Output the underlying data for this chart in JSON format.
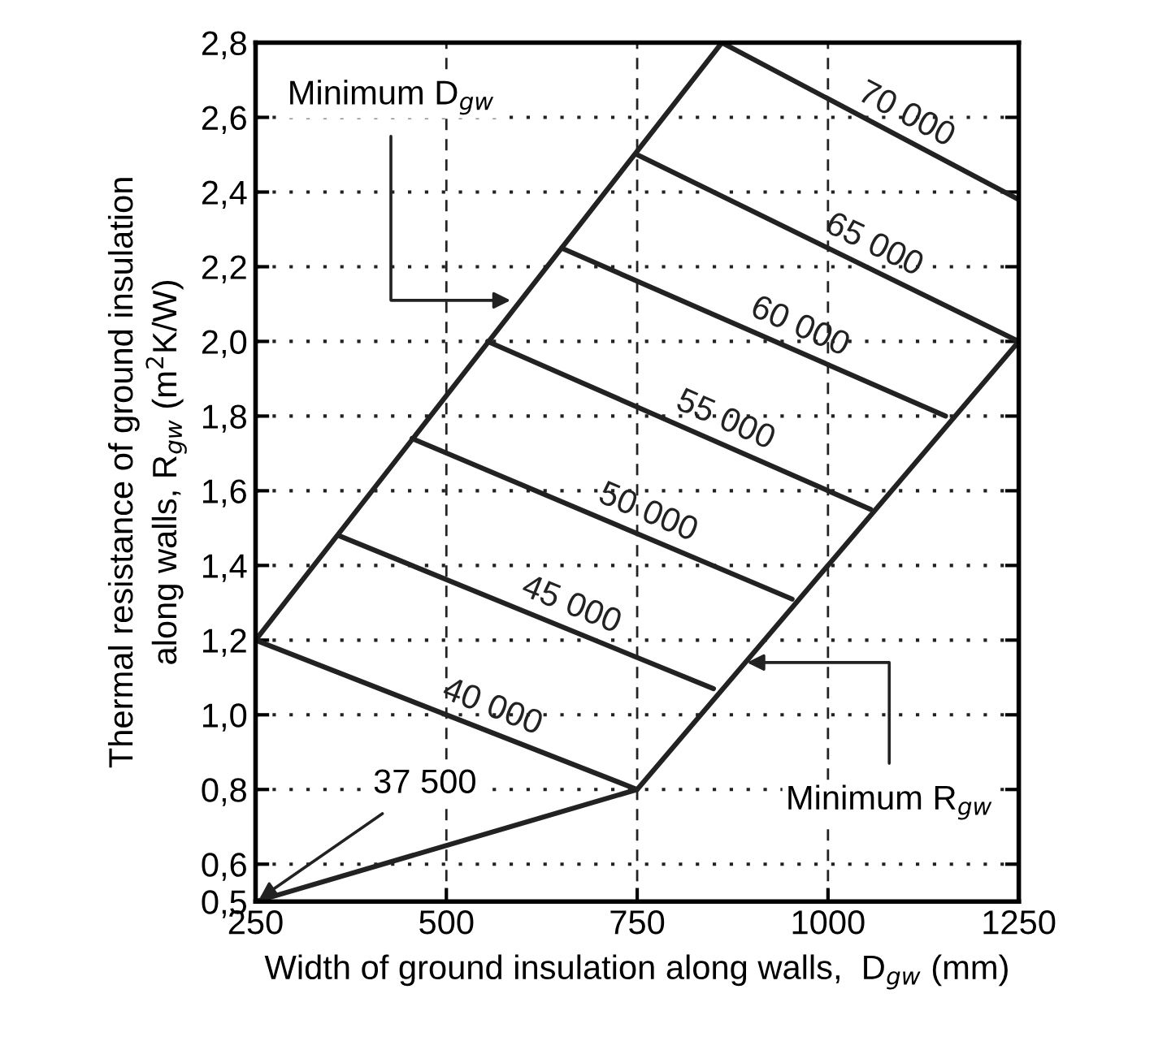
{
  "chart_data": {
    "type": "line",
    "xlabel": "Width of ground insulation along walls,  D$_{gw}$ (mm)",
    "ylabel": "Thermal resistance of ground insulation\nalong walls, R$_{gw}$ (m$^{2}$K/W)",
    "xlim": [
      250,
      1250
    ],
    "xticks": [
      250,
      500,
      750,
      1000,
      1250
    ],
    "ylim": [
      0.5,
      2.8
    ],
    "yticks": [
      {
        "value": 0.5,
        "label": "0,5"
      },
      {
        "value": 0.6,
        "label": "0,6"
      },
      {
        "value": 0.8,
        "label": "0,8"
      },
      {
        "value": 1.0,
        "label": "1,0"
      },
      {
        "value": 1.2,
        "label": "1,2"
      },
      {
        "value": 1.4,
        "label": "1,4"
      },
      {
        "value": 1.6,
        "label": "1,6"
      },
      {
        "value": 1.8,
        "label": "1,8"
      },
      {
        "value": 2.0,
        "label": "2,0"
      },
      {
        "value": 2.2,
        "label": "2,2"
      },
      {
        "value": 2.4,
        "label": "2,4"
      },
      {
        "value": 2.6,
        "label": "2,6"
      },
      {
        "value": 2.8,
        "label": "2,8"
      }
    ],
    "grid": true,
    "marker": "none",
    "line_style": "solid",
    "series": [
      {
        "color": "#222222",
        "x": [
          250,
          861
        ],
        "values": [
          1.2,
          2.8
        ]
      },
      {
        "color": "#222222",
        "x": [
          250,
          750,
          1250
        ],
        "values": [
          0.5,
          0.8,
          2.0
        ]
      },
      {
        "name": "40 000",
        "color": "#222222",
        "x": [
          250,
          750
        ],
        "values": [
          1.2,
          0.8
        ]
      },
      {
        "name": "45 000",
        "color": "#222222",
        "x": [
          359,
          850
        ],
        "values": [
          1.48,
          1.07
        ]
      },
      {
        "name": "50 000",
        "color": "#222222",
        "x": [
          455,
          953
        ],
        "values": [
          1.74,
          1.31
        ]
      },
      {
        "name": "55 000",
        "color": "#222222",
        "x": [
          554,
          1056
        ],
        "values": [
          2.0,
          1.55
        ]
      },
      {
        "name": "60 000",
        "color": "#222222",
        "x": [
          651,
          1154
        ],
        "values": [
          2.25,
          1.8
        ]
      },
      {
        "name": "65 000",
        "color": "#222222",
        "x": [
          750,
          1250
        ],
        "values": [
          2.5,
          2.0
        ]
      },
      {
        "name": "70 000",
        "color": "#222222",
        "x": [
          861,
          1250
        ],
        "values": [
          2.8,
          2.38
        ]
      }
    ],
    "annotations": [
      {
        "text": "Minimum D$_{gw}$",
        "x": 590,
        "y": 2.11
      },
      {
        "text": "Minimum R$_{gw}$",
        "x": 888,
        "y": 1.14
      },
      {
        "text": "37 500",
        "x": 250,
        "y": 0.5
      }
    ]
  }
}
